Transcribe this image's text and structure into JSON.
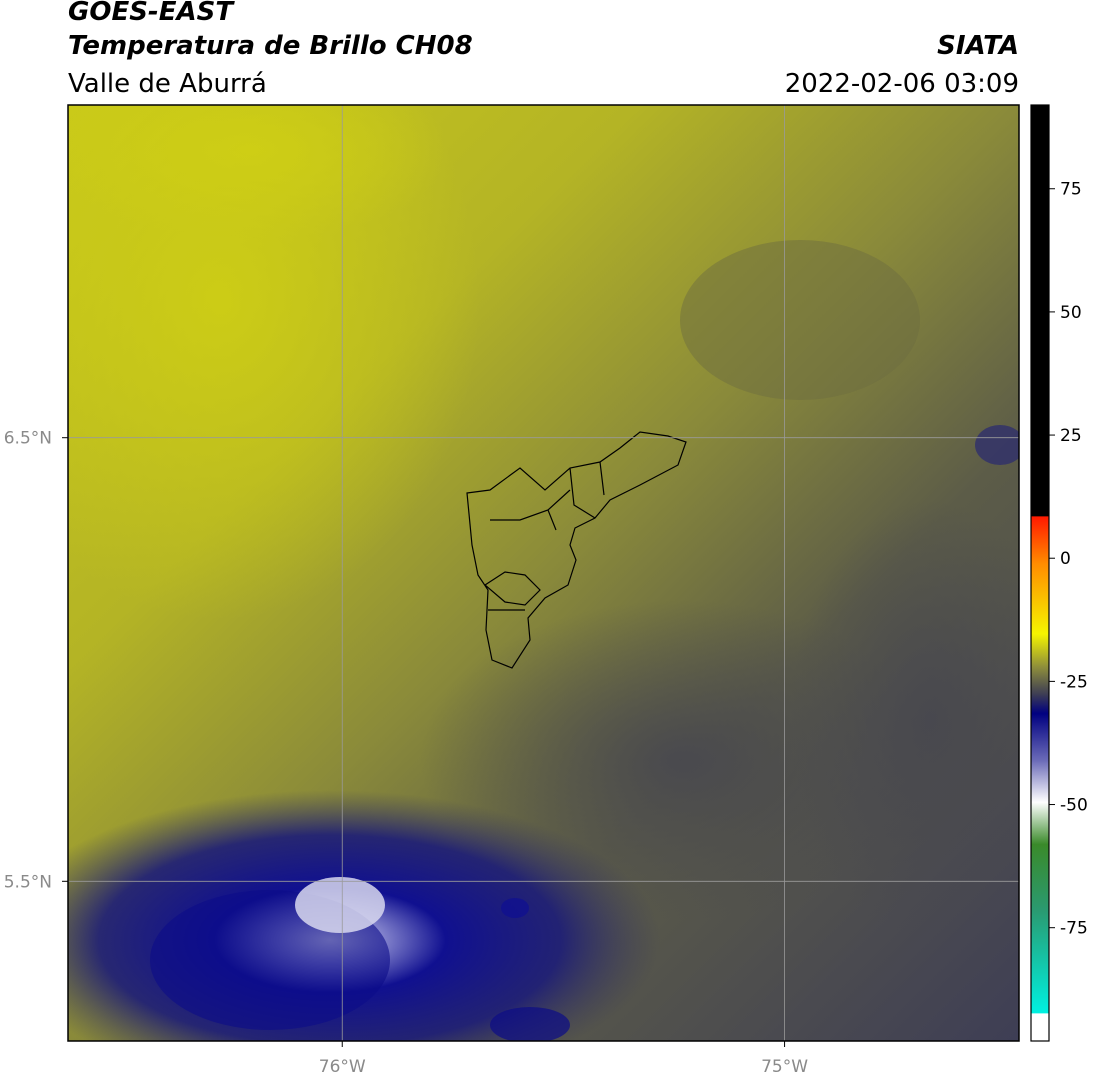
{
  "header": {
    "title": "GOES-EAST",
    "subtitle": "Temperatura de Brillo CH08",
    "region": "Valle de Aburrá",
    "source": "SIATA",
    "datetime": "2022-02-06 03:09"
  },
  "map": {
    "xlim": [
      -76.62,
      -74.47
    ],
    "ylim": [
      5.14,
      7.25
    ],
    "xticks": [
      {
        "value": -76,
        "label": "76°W"
      },
      {
        "value": -75,
        "label": "75°W"
      }
    ],
    "yticks": [
      {
        "value": 6.5,
        "label": "6.5°N"
      },
      {
        "value": 5.5,
        "label": "5.5°N"
      }
    ],
    "grid": true
  },
  "colorbar": {
    "lim": [
      -98,
      92
    ],
    "ticks": [
      75,
      50,
      25,
      0,
      -25,
      -50,
      -75
    ]
  }
}
